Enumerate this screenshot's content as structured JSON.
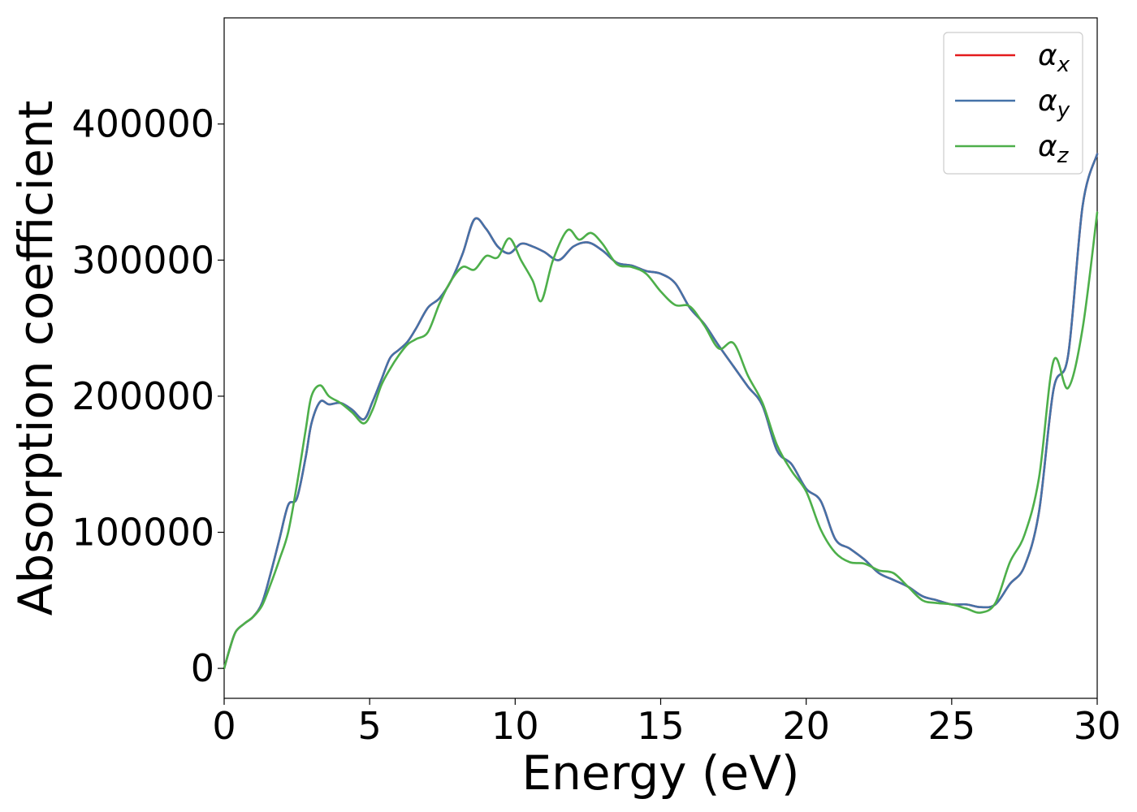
{
  "chart_data": {
    "type": "line",
    "xlabel": "Energy (eV)",
    "ylabel": "Absorption coefficient",
    "xlim": [
      0,
      30
    ],
    "ylim": [
      -22000,
      478000
    ],
    "x_ticks": [
      0,
      5,
      10,
      15,
      20,
      25,
      30
    ],
    "y_ticks": [
      0,
      100000,
      200000,
      300000,
      400000
    ],
    "grid": false,
    "legend_position": "top-right",
    "series": [
      {
        "name": "αx",
        "symbol": "α",
        "subscript": "x",
        "color": "#e41a1c",
        "x": [
          0,
          0.2,
          0.4,
          0.7,
          1,
          1.3,
          1.6,
          1.9,
          2.2,
          2.5,
          2.8,
          3,
          3.3,
          3.6,
          4,
          4.4,
          4.8,
          5.1,
          5.4,
          5.7,
          6,
          6.3,
          6.6,
          7,
          7.4,
          7.8,
          8.2,
          8.6,
          9,
          9.4,
          9.8,
          10.2,
          10.6,
          11,
          11.5,
          12,
          12.5,
          13,
          13.5,
          14,
          14.5,
          15,
          15.5,
          16,
          16.5,
          17,
          17.5,
          18,
          18.5,
          19,
          19.5,
          20,
          20.5,
          21,
          21.5,
          22,
          22.5,
          23,
          23.5,
          24,
          24.5,
          25,
          25.5,
          26,
          26.5,
          27,
          27.5,
          28,
          28.5,
          29,
          29.5,
          30
        ],
        "values": [
          0,
          15000,
          27000,
          33000,
          38000,
          48000,
          70000,
          95000,
          120000,
          125000,
          155000,
          180000,
          196000,
          194000,
          195000,
          190000,
          183000,
          196000,
          212000,
          228000,
          234000,
          240000,
          250000,
          265000,
          272000,
          285000,
          305000,
          330000,
          323000,
          310000,
          305000,
          312000,
          310000,
          306000,
          300000,
          310000,
          313000,
          307000,
          298000,
          296000,
          292000,
          290000,
          283000,
          265000,
          253000,
          237000,
          222000,
          207000,
          193000,
          160000,
          150000,
          132000,
          123000,
          95000,
          88000,
          80000,
          70000,
          65000,
          60000,
          53000,
          50000,
          47000,
          47000,
          45000,
          47000,
          62000,
          75000,
          115000,
          205000,
          230000,
          340000,
          378000
        ]
      },
      {
        "name": "αy",
        "symbol": "α",
        "subscript": "y",
        "color": "#4472a8",
        "x": [
          0,
          0.2,
          0.4,
          0.7,
          1,
          1.3,
          1.6,
          1.9,
          2.2,
          2.5,
          2.8,
          3,
          3.3,
          3.6,
          4,
          4.4,
          4.8,
          5.1,
          5.4,
          5.7,
          6,
          6.3,
          6.6,
          7,
          7.4,
          7.8,
          8.2,
          8.6,
          9,
          9.4,
          9.8,
          10.2,
          10.6,
          11,
          11.5,
          12,
          12.5,
          13,
          13.5,
          14,
          14.5,
          15,
          15.5,
          16,
          16.5,
          17,
          17.5,
          18,
          18.5,
          19,
          19.5,
          20,
          20.5,
          21,
          21.5,
          22,
          22.5,
          23,
          23.5,
          24,
          24.5,
          25,
          25.5,
          26,
          26.5,
          27,
          27.5,
          28,
          28.5,
          29,
          29.5,
          30
        ],
        "values": [
          0,
          15000,
          27000,
          33000,
          38000,
          48000,
          70000,
          95000,
          120000,
          125000,
          155000,
          180000,
          196000,
          194000,
          195000,
          190000,
          183000,
          196000,
          212000,
          228000,
          234000,
          240000,
          250000,
          265000,
          272000,
          285000,
          305000,
          330000,
          323000,
          310000,
          305000,
          312000,
          310000,
          306000,
          300000,
          310000,
          313000,
          307000,
          298000,
          296000,
          292000,
          290000,
          283000,
          265000,
          253000,
          237000,
          222000,
          207000,
          193000,
          160000,
          150000,
          132000,
          123000,
          95000,
          88000,
          80000,
          70000,
          65000,
          60000,
          53000,
          50000,
          47000,
          47000,
          45000,
          47000,
          62000,
          75000,
          115000,
          205000,
          230000,
          340000,
          378000
        ]
      },
      {
        "name": "αz",
        "symbol": "α",
        "subscript": "z",
        "color": "#4daf4a",
        "x": [
          0,
          0.2,
          0.4,
          0.7,
          1,
          1.3,
          1.6,
          1.9,
          2.2,
          2.5,
          2.8,
          3,
          3.3,
          3.6,
          4,
          4.4,
          4.8,
          5.1,
          5.4,
          5.7,
          6,
          6.3,
          6.6,
          7,
          7.4,
          7.8,
          8.2,
          8.6,
          9,
          9.4,
          9.8,
          10.2,
          10.6,
          10.9,
          11.3,
          11.8,
          12.2,
          12.6,
          13,
          13.5,
          14,
          14.5,
          15,
          15.5,
          16,
          16.5,
          17,
          17.5,
          18,
          18.5,
          19,
          19.5,
          20,
          20.5,
          21,
          21.5,
          22,
          22.5,
          23,
          23.5,
          24,
          24.5,
          25,
          25.5,
          26,
          26.5,
          27,
          27.5,
          28,
          28.5,
          29,
          29.5,
          30
        ],
        "values": [
          0,
          15000,
          27000,
          33000,
          38000,
          46000,
          62000,
          80000,
          100000,
          135000,
          175000,
          200000,
          208000,
          200000,
          195000,
          188000,
          180000,
          190000,
          208000,
          220000,
          230000,
          238000,
          242000,
          247000,
          268000,
          285000,
          295000,
          293000,
          303000,
          302000,
          316000,
          300000,
          285000,
          270000,
          300000,
          322000,
          315000,
          320000,
          312000,
          297000,
          295000,
          290000,
          277000,
          267000,
          266000,
          252000,
          235000,
          239000,
          215000,
          195000,
          164000,
          145000,
          130000,
          102000,
          85000,
          78000,
          77000,
          72000,
          70000,
          60000,
          50000,
          48000,
          47000,
          44000,
          41000,
          48000,
          78000,
          98000,
          140000,
          226000,
          206000,
          250000,
          335000
        ]
      }
    ]
  }
}
